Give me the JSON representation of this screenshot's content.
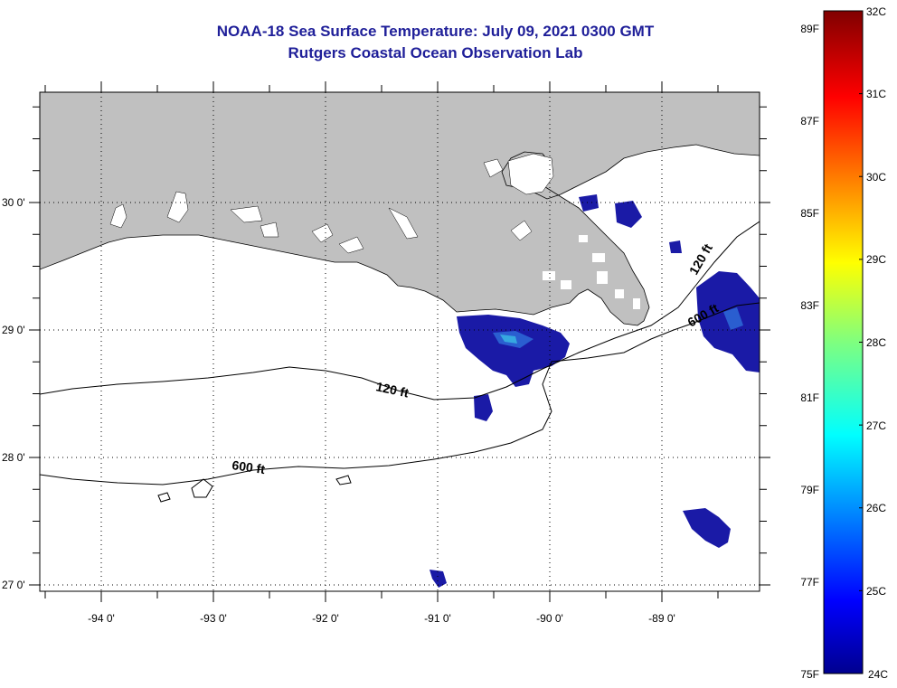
{
  "title": {
    "line1": "NOAA-18 Sea Surface Temperature:  July 09, 2021 0300 GMT",
    "line2": "Rutgers Coastal Ocean Observation Lab"
  },
  "map": {
    "lat_labels": [
      "30 0'",
      "29 0'",
      "28 0'",
      "27 0'"
    ],
    "lon_labels": [
      "-94 0'",
      "-93 0'",
      "-92 0'",
      "-91 0'",
      "-90 0'",
      "-89 0'"
    ],
    "contour_labels": [
      "120 ft",
      "600 ft",
      "120 ft",
      "600 ft"
    ],
    "colors": {
      "land": "#c0c0c0",
      "water_nodata": "#ffffff",
      "sst_cold": "#1a1aa6",
      "sst_warm_spot": "#36a8e0"
    }
  },
  "colorbar": {
    "celsius": [
      "32C",
      "31C",
      "30C",
      "29C",
      "28C",
      "27C",
      "26C",
      "25C",
      "24C"
    ],
    "fahrenheit": [
      "89F",
      "87F",
      "85F",
      "83F",
      "81F",
      "79F",
      "77F",
      "75F"
    ],
    "range_c": [
      24,
      32
    ]
  }
}
